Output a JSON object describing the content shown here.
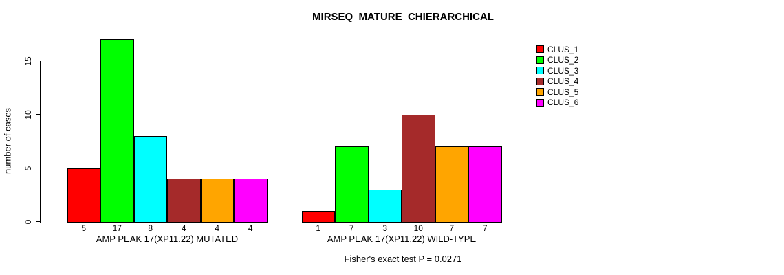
{
  "title": "MIRSEQ_MATURE_CHIERARCHICAL",
  "footer": "Fisher's exact test P = 0.0271",
  "y_axis": {
    "label": "number of cases",
    "ticks": [
      0,
      5,
      10,
      15
    ]
  },
  "legend": {
    "items": [
      {
        "label": "CLUS_1",
        "color": "#ff0000"
      },
      {
        "label": "CLUS_2",
        "color": "#00ff00"
      },
      {
        "label": "CLUS_3",
        "color": "#00ffff"
      },
      {
        "label": "CLUS_4",
        "color": "#a52a2a"
      },
      {
        "label": "CLUS_5",
        "color": "#ffa500"
      },
      {
        "label": "CLUS_6",
        "color": "#ff00ff"
      }
    ]
  },
  "chart_data": {
    "type": "bar",
    "title": "MIRSEQ_MATURE_CHIERARCHICAL",
    "xlabel": "",
    "ylabel": "number of cases",
    "yticks": [
      0,
      5,
      10,
      15
    ],
    "ylim": [
      0,
      17
    ],
    "grid": false,
    "legend_position": "right",
    "categories": [
      "AMP PEAK 17(XP11.22) MUTATED",
      "AMP PEAK 17(XP11.22) WILD-TYPE"
    ],
    "series": [
      {
        "name": "CLUS_1",
        "color": "#ff0000",
        "values": [
          5,
          1
        ]
      },
      {
        "name": "CLUS_2",
        "color": "#00ff00",
        "values": [
          17,
          7
        ]
      },
      {
        "name": "CLUS_3",
        "color": "#00ffff",
        "values": [
          8,
          3
        ]
      },
      {
        "name": "CLUS_4",
        "color": "#a52a2a",
        "values": [
          4,
          10
        ]
      },
      {
        "name": "CLUS_5",
        "color": "#ffa500",
        "values": [
          4,
          7
        ]
      },
      {
        "name": "CLUS_6",
        "color": "#ff00ff",
        "values": [
          4,
          7
        ]
      }
    ],
    "bar_value_labels": true,
    "annotation": "Fisher's exact test P = 0.0271"
  }
}
